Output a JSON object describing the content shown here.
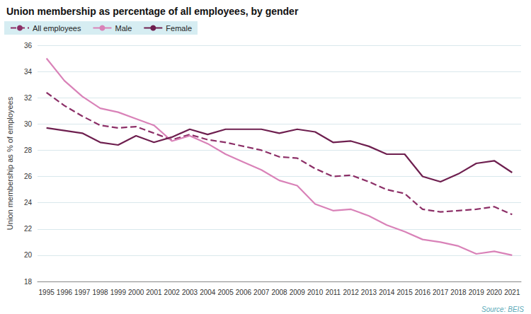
{
  "chart_data": {
    "type": "line",
    "title": "Union membership as percentage of all employees, by gender",
    "y_label": "Union membership as % of employees",
    "annotations": [
      "Source: BEIS"
    ],
    "categories": [
      "1995",
      "1996",
      "1997",
      "1998",
      "1999",
      "2000",
      "2001",
      "2002",
      "2003",
      "2004",
      "2005",
      "2006",
      "2007",
      "2008",
      "2009",
      "2010",
      "2011",
      "2012",
      "2013",
      "2014",
      "2015",
      "2016",
      "2017",
      "2018",
      "2019",
      "2020",
      "2021"
    ],
    "series": [
      {
        "name": "All employees",
        "color": "#8c2f67",
        "line_style": "dashed",
        "values": [
          32.4,
          31.4,
          30.6,
          29.9,
          29.7,
          29.8,
          29.3,
          28.8,
          29.2,
          28.8,
          28.6,
          28.3,
          28.0,
          27.5,
          27.4,
          26.6,
          26.0,
          26.1,
          25.6,
          25.0,
          24.7,
          23.5,
          23.3,
          23.4,
          23.5,
          23.7,
          23.1
        ]
      },
      {
        "name": "Male",
        "color": "#d982b8",
        "line_style": "solid",
        "values": [
          35.0,
          33.3,
          32.1,
          31.2,
          30.9,
          30.4,
          29.9,
          28.7,
          29.1,
          28.5,
          27.7,
          27.1,
          26.5,
          25.7,
          25.3,
          23.9,
          23.4,
          23.5,
          23.0,
          22.3,
          21.8,
          21.2,
          21.0,
          20.7,
          20.1,
          20.3,
          20.0
        ]
      },
      {
        "name": "Female",
        "color": "#6e1f4f",
        "line_style": "solid",
        "values": [
          29.7,
          29.5,
          29.3,
          28.6,
          28.4,
          29.1,
          28.6,
          29.0,
          29.6,
          29.2,
          29.6,
          29.6,
          29.6,
          29.3,
          29.6,
          29.4,
          28.6,
          28.7,
          28.3,
          27.7,
          27.7,
          26.0,
          25.6,
          26.2,
          27.0,
          27.2,
          26.3
        ]
      }
    ],
    "ylim": [
      18,
      36
    ],
    "yticks": [
      18,
      20,
      22,
      24,
      26,
      28,
      30,
      32,
      34,
      36
    ],
    "grid": true,
    "legend": "top-left"
  }
}
